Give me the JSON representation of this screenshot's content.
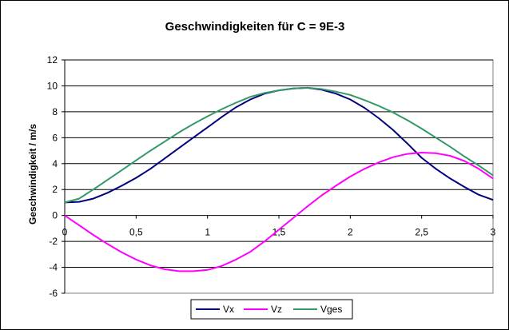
{
  "chart_data": {
    "type": "line",
    "title": "Geschwindigkeiten für C = 9E-3",
    "xlabel": "",
    "ylabel": "Geschwindigkeit / m/s",
    "xlim": [
      0,
      3
    ],
    "ylim": [
      -6,
      12
    ],
    "x_ticks": [
      "0",
      "0,5",
      "1",
      "1,5",
      "2",
      "2,5",
      "3"
    ],
    "x_tick_values": [
      0,
      0.5,
      1,
      1.5,
      2,
      2.5,
      3
    ],
    "y_ticks": [
      "-6",
      "-4",
      "-2",
      "0",
      "2",
      "4",
      "6",
      "8",
      "10",
      "12"
    ],
    "y_tick_values": [
      -6,
      -4,
      -2,
      0,
      2,
      4,
      6,
      8,
      10,
      12
    ],
    "grid": "horizontal",
    "legend_position": "bottom",
    "x": [
      0,
      0.1,
      0.2,
      0.3,
      0.4,
      0.5,
      0.6,
      0.7,
      0.8,
      0.9,
      1.0,
      1.1,
      1.2,
      1.3,
      1.4,
      1.5,
      1.6,
      1.7,
      1.8,
      1.9,
      2.0,
      2.1,
      2.2,
      2.3,
      2.4,
      2.5,
      2.6,
      2.7,
      2.8,
      2.9,
      3.0
    ],
    "series": [
      {
        "name": "Vx",
        "color": "#000080",
        "values": [
          1.0,
          1.05,
          1.3,
          1.75,
          2.3,
          2.9,
          3.6,
          4.4,
          5.2,
          6.0,
          6.8,
          7.6,
          8.35,
          8.95,
          9.4,
          9.65,
          9.8,
          9.85,
          9.7,
          9.4,
          8.95,
          8.3,
          7.5,
          6.6,
          5.55,
          4.45,
          3.6,
          2.85,
          2.2,
          1.6,
          1.2
        ]
      },
      {
        "name": "Vz",
        "color": "#FF00FF",
        "values": [
          0,
          -0.75,
          -1.5,
          -2.2,
          -2.85,
          -3.4,
          -3.85,
          -4.15,
          -4.3,
          -4.3,
          -4.2,
          -3.9,
          -3.4,
          -2.8,
          -2.0,
          -1.1,
          -0.2,
          0.7,
          1.55,
          2.3,
          3.0,
          3.6,
          4.1,
          4.5,
          4.75,
          4.85,
          4.8,
          4.6,
          4.2,
          3.6,
          2.85
        ]
      },
      {
        "name": "Vges",
        "color": "#339966",
        "values": [
          1.0,
          1.3,
          2.0,
          2.75,
          3.5,
          4.25,
          5.0,
          5.7,
          6.4,
          7.05,
          7.65,
          8.2,
          8.7,
          9.15,
          9.45,
          9.65,
          9.8,
          9.85,
          9.75,
          9.55,
          9.3,
          8.9,
          8.45,
          7.95,
          7.35,
          6.7,
          6.0,
          5.3,
          4.55,
          3.85,
          3.1
        ]
      }
    ]
  }
}
